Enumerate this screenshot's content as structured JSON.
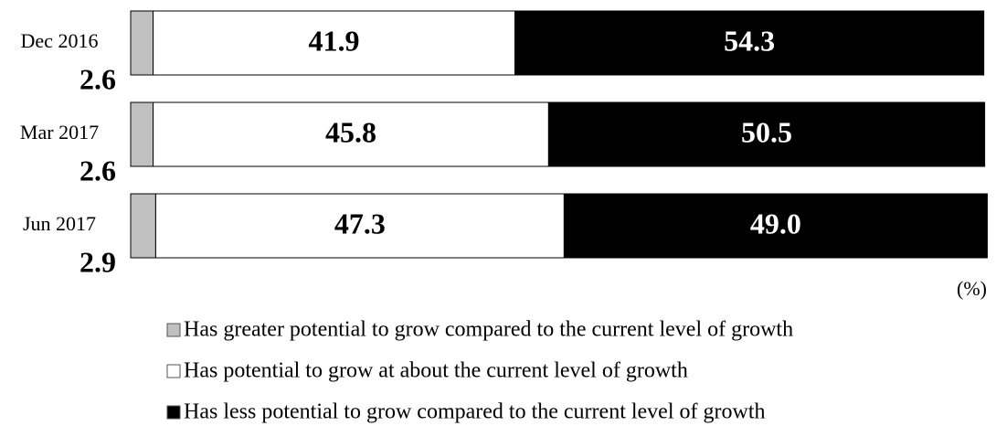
{
  "chart_data": {
    "type": "stacked-bar",
    "categories": [
      "Dec 2016",
      "Mar 2017",
      "Jun 2017"
    ],
    "series": [
      {
        "name": "Has greater potential to grow compared to the current level of growth",
        "color": "#c0c0c0",
        "values": [
          2.6,
          2.6,
          2.9
        ]
      },
      {
        "name": "Has potential to grow at about the current level of growth",
        "color": "#ffffff",
        "values": [
          41.9,
          45.8,
          47.3
        ]
      },
      {
        "name": "Has less potential to grow compared to the current level of growth",
        "color": "#000000",
        "values": [
          54.3,
          50.5,
          49.0
        ],
        "value_labels": [
          "54.3",
          "50.5",
          "49.0"
        ]
      }
    ],
    "unit_label": "(%)"
  }
}
